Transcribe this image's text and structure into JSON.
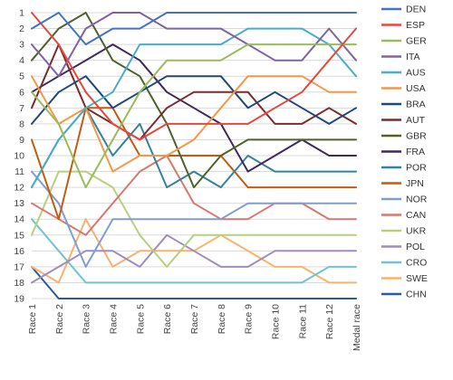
{
  "chart_data": {
    "type": "line",
    "title": "",
    "xlabel": "",
    "ylabel": "",
    "x_categories": [
      "Race 1",
      "Race 2",
      "Race 3",
      "Race 4",
      "Race 5",
      "Race 6",
      "Race 7",
      "Race 8",
      "Race 9",
      "Race 10",
      "Race 11",
      "Race 12",
      "Medal race"
    ],
    "y_ticks": [
      1,
      2,
      3,
      4,
      5,
      6,
      7,
      8,
      9,
      10,
      11,
      12,
      13,
      14,
      15,
      16,
      17,
      18,
      19
    ],
    "ylim": [
      1,
      19
    ],
    "y_inverted": true,
    "grid": "horizontal",
    "legend_position": "right",
    "series": [
      {
        "name": "DEN",
        "color": "#4472c4",
        "values": [
          2,
          1,
          3,
          2,
          2,
          1,
          1,
          1,
          1,
          1,
          1,
          1,
          1
        ]
      },
      {
        "name": "ESP",
        "color": "#e8473d",
        "values": [
          1,
          3,
          6,
          8,
          9,
          8,
          8,
          8,
          8,
          7,
          6,
          4,
          2
        ]
      },
      {
        "name": "GER",
        "color": "#9bbb59",
        "values": [
          6,
          8,
          12,
          9,
          6,
          4,
          4,
          4,
          3,
          3,
          3,
          3,
          3
        ]
      },
      {
        "name": "ITA",
        "color": "#8064a2",
        "values": [
          3,
          5,
          2,
          1,
          1,
          2,
          2,
          2,
          3,
          4,
          4,
          2,
          4
        ]
      },
      {
        "name": "AUS",
        "color": "#4bacc6",
        "values": [
          12,
          9,
          7,
          6,
          3,
          3,
          3,
          3,
          2,
          2,
          2,
          3,
          5
        ]
      },
      {
        "name": "USA",
        "color": "#f79646",
        "values": [
          5,
          8,
          7,
          11,
          10,
          10,
          9,
          7,
          5,
          5,
          5,
          6,
          6
        ]
      },
      {
        "name": "BRA",
        "color": "#1f497d",
        "values": [
          8,
          6,
          5,
          7,
          6,
          5,
          5,
          5,
          7,
          6,
          7,
          8,
          7
        ]
      },
      {
        "name": "AUT",
        "color": "#7b2c2c",
        "values": [
          7,
          3,
          7,
          8,
          9,
          7,
          6,
          6,
          6,
          8,
          8,
          7,
          8
        ]
      },
      {
        "name": "GBR",
        "color": "#4f6228",
        "values": [
          4,
          2,
          1,
          4,
          5,
          8,
          12,
          10,
          9,
          9,
          9,
          9,
          9
        ]
      },
      {
        "name": "FRA",
        "color": "#3f2b5b",
        "values": [
          6,
          5,
          4,
          3,
          4,
          6,
          7,
          8,
          11,
          10,
          9,
          10,
          10
        ]
      },
      {
        "name": "POR",
        "color": "#31849b",
        "values": [
          12,
          9,
          7,
          10,
          8,
          12,
          11,
          12,
          10,
          11,
          11,
          11,
          11
        ]
      },
      {
        "name": "JPN",
        "color": "#c55a11",
        "values": [
          9,
          14,
          7,
          7,
          10,
          10,
          10,
          10,
          12,
          12,
          12,
          12,
          12
        ]
      },
      {
        "name": "NOR",
        "color": "#7f9fcf",
        "values": [
          11,
          13,
          17,
          14,
          14,
          14,
          14,
          14,
          13,
          13,
          13,
          13,
          13
        ]
      },
      {
        "name": "CAN",
        "color": "#d9776f",
        "values": [
          13,
          14,
          15,
          13,
          11,
          10,
          13,
          14,
          14,
          13,
          13,
          14,
          14
        ]
      },
      {
        "name": "UKR",
        "color": "#b8cf7e",
        "values": [
          15,
          11,
          11,
          12,
          15,
          17,
          15,
          15,
          15,
          15,
          15,
          15,
          15
        ]
      },
      {
        "name": "POL",
        "color": "#a08cbf",
        "values": [
          18,
          17,
          16,
          16,
          17,
          15,
          16,
          17,
          17,
          16,
          16,
          16,
          16
        ]
      },
      {
        "name": "CRO",
        "color": "#6fc3d6",
        "values": [
          14,
          16,
          18,
          18,
          18,
          18,
          18,
          18,
          18,
          18,
          18,
          17,
          17
        ]
      },
      {
        "name": "SWE",
        "color": "#f9b26b",
        "values": [
          17,
          18,
          14,
          17,
          16,
          16,
          16,
          15,
          16,
          17,
          17,
          18,
          18
        ]
      },
      {
        "name": "CHN",
        "color": "#2c5aa0",
        "values": [
          17,
          19,
          19,
          19,
          19,
          19,
          19,
          19,
          19,
          19,
          19,
          19,
          19
        ]
      }
    ]
  }
}
